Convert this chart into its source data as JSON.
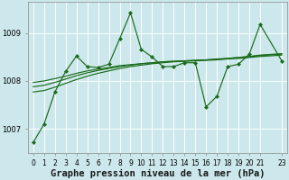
{
  "xlabel": "Graphe pression niveau de la mer (hPa)",
  "bg_color": "#cce8ec",
  "line_color": "#1a6b1a",
  "grid_color": "#b0d8dc",
  "x_vals": [
    0,
    1,
    2,
    3,
    4,
    5,
    6,
    7,
    8,
    9,
    10,
    11,
    12,
    13,
    14,
    15,
    16,
    17,
    18,
    19,
    20,
    21,
    23
  ],
  "ylim": [
    1006.5,
    1009.65
  ],
  "yticks": [
    1007,
    1008,
    1009
  ],
  "main_series": [
    1006.72,
    1007.1,
    1007.77,
    1008.2,
    1008.52,
    1008.3,
    1008.28,
    1008.35,
    1008.88,
    1009.42,
    1008.66,
    1008.5,
    1008.3,
    1008.3,
    1008.38,
    1008.38,
    1007.46,
    1007.68,
    1008.3,
    1008.35,
    1008.56,
    1009.18,
    1008.42
  ],
  "smooth1": [
    1007.77,
    1007.8,
    1007.87,
    1007.95,
    1008.03,
    1008.1,
    1008.16,
    1008.21,
    1008.26,
    1008.3,
    1008.33,
    1008.36,
    1008.38,
    1008.4,
    1008.41,
    1008.42,
    1008.43,
    1008.44,
    1008.46,
    1008.47,
    1008.49,
    1008.51,
    1008.54
  ],
  "smooth2": [
    1007.88,
    1007.91,
    1007.97,
    1008.04,
    1008.11,
    1008.17,
    1008.22,
    1008.26,
    1008.3,
    1008.33,
    1008.36,
    1008.38,
    1008.4,
    1008.41,
    1008.42,
    1008.43,
    1008.44,
    1008.46,
    1008.47,
    1008.49,
    1008.51,
    1008.53,
    1008.56
  ],
  "smooth3": [
    1007.97,
    1008.0,
    1008.05,
    1008.1,
    1008.16,
    1008.21,
    1008.25,
    1008.28,
    1008.32,
    1008.34,
    1008.36,
    1008.38,
    1008.4,
    1008.41,
    1008.42,
    1008.43,
    1008.44,
    1008.45,
    1008.47,
    1008.49,
    1008.51,
    1008.54,
    1008.57
  ],
  "xlabel_fontsize": 7.5,
  "tick_fontsize": 5.5,
  "ytick_fontsize": 6.0
}
